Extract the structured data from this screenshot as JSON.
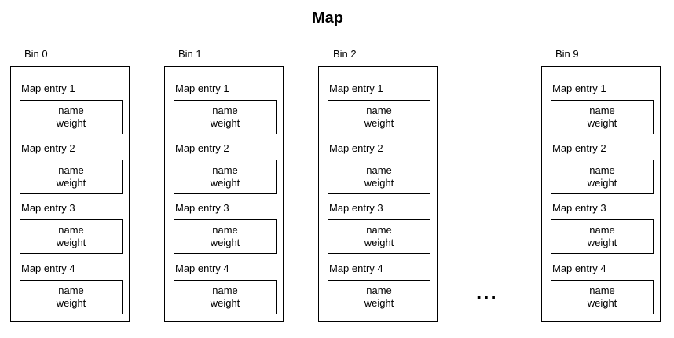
{
  "title": "Map",
  "ellipsis": "...",
  "bins": [
    {
      "label": "Bin 0",
      "entries": [
        {
          "label": "Map entry 1",
          "field1": "name",
          "field2": "weight"
        },
        {
          "label": "Map entry 2",
          "field1": "name",
          "field2": "weight"
        },
        {
          "label": "Map entry 3",
          "field1": "name",
          "field2": "weight"
        },
        {
          "label": "Map entry 4",
          "field1": "name",
          "field2": "weight"
        }
      ]
    },
    {
      "label": "Bin 1",
      "entries": [
        {
          "label": "Map entry 1",
          "field1": "name",
          "field2": "weight"
        },
        {
          "label": "Map entry 2",
          "field1": "name",
          "field2": "weight"
        },
        {
          "label": "Map entry 3",
          "field1": "name",
          "field2": "weight"
        },
        {
          "label": "Map entry 4",
          "field1": "name",
          "field2": "weight"
        }
      ]
    },
    {
      "label": "Bin 2",
      "entries": [
        {
          "label": "Map entry 1",
          "field1": "name",
          "field2": "weight"
        },
        {
          "label": "Map entry 2",
          "field1": "name",
          "field2": "weight"
        },
        {
          "label": "Map entry 3",
          "field1": "name",
          "field2": "weight"
        },
        {
          "label": "Map entry 4",
          "field1": "name",
          "field2": "weight"
        }
      ]
    },
    {
      "label": "Bin 9",
      "entries": [
        {
          "label": "Map entry 1",
          "field1": "name",
          "field2": "weight"
        },
        {
          "label": "Map entry 2",
          "field1": "name",
          "field2": "weight"
        },
        {
          "label": "Map entry 3",
          "field1": "name",
          "field2": "weight"
        },
        {
          "label": "Map entry 4",
          "field1": "name",
          "field2": "weight"
        }
      ]
    }
  ]
}
